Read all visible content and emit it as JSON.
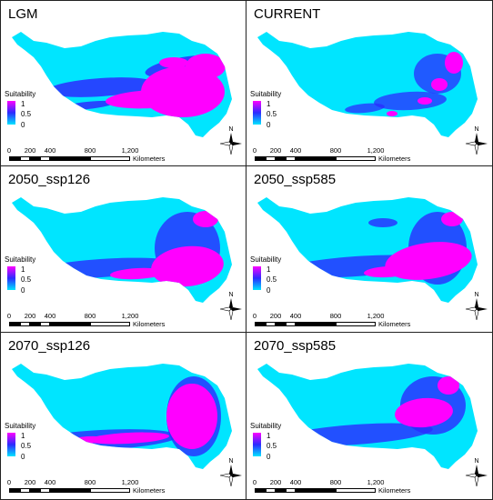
{
  "panels": [
    {
      "title": "LGM"
    },
    {
      "title": "CURRENT"
    },
    {
      "title": "2050_ssp126"
    },
    {
      "title": "2050_ssp585"
    },
    {
      "title": "2070_ssp126"
    },
    {
      "title": "2070_ssp585"
    }
  ],
  "legend": {
    "title": "Suitability",
    "max": "1",
    "mid": "0.5",
    "min": "0"
  },
  "scalebar": {
    "ticks": [
      "0",
      "200",
      "400",
      "800",
      "1,200"
    ],
    "unit": "Kilometers"
  },
  "compass": {
    "north": "N"
  },
  "colors": {
    "low": "#00e5ff",
    "mid": "#2b2bff",
    "high": "#ff00ff",
    "frame": "#222222"
  }
}
